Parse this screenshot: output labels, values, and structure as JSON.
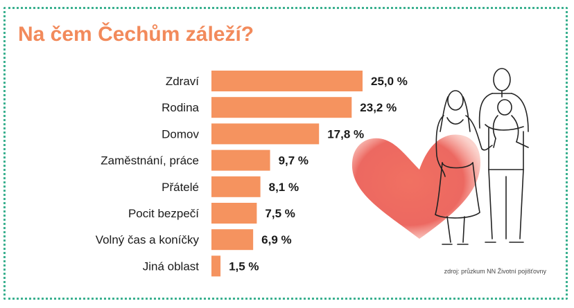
{
  "title": "Na čem Čechům záleží?",
  "source": "zdroj: průzkum NN Životní pojišťovny",
  "colors": {
    "bar": "#f5935f",
    "title": "#f28a5b",
    "frame": "#3ab08f",
    "heart": "#e94e45"
  },
  "chart_data": {
    "type": "bar",
    "orientation": "horizontal",
    "title": "Na čem Čechům záleží?",
    "categories": [
      "Zdraví",
      "Rodina",
      "Domov",
      "Zaměstnání, práce",
      "Přátelé",
      "Pocit bezpečí",
      "Volný čas a koníčky",
      "Jiná oblast"
    ],
    "values": [
      25.0,
      23.2,
      17.8,
      9.7,
      8.1,
      7.5,
      6.9,
      1.5
    ],
    "value_labels": [
      "25,0 %",
      "23,2 %",
      "17,8 %",
      "9,7 %",
      "8,1 %",
      "7,5 %",
      "6,9 %",
      "1,5 %"
    ],
    "xlim": [
      0,
      25
    ],
    "grid": false,
    "legend": "none"
  }
}
